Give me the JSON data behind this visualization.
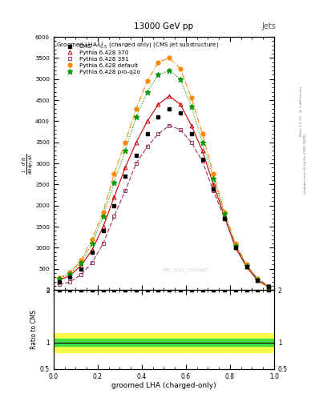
{
  "title_top": "13000 GeV pp",
  "title_right": "Jets",
  "xlabel": "groomed LHA (charged-only)",
  "ylabel_ratio": "Ratio to CMS",
  "watermark": "CMS_2021_I1920187",
  "cms_x": [
    0.025,
    0.075,
    0.125,
    0.175,
    0.225,
    0.275,
    0.325,
    0.375,
    0.425,
    0.475,
    0.525,
    0.575,
    0.625,
    0.675,
    0.725,
    0.775,
    0.825,
    0.875,
    0.925,
    0.975
  ],
  "cms_y": [
    200,
    300,
    500,
    900,
    1400,
    2000,
    2700,
    3200,
    3700,
    4100,
    4300,
    4200,
    3700,
    3100,
    2400,
    1700,
    1000,
    550,
    230,
    80
  ],
  "py370_y": [
    230,
    340,
    580,
    950,
    1500,
    2200,
    2900,
    3500,
    4000,
    4400,
    4600,
    4400,
    3900,
    3300,
    2500,
    1750,
    1000,
    550,
    220,
    70
  ],
  "py391_y": [
    130,
    190,
    360,
    650,
    1100,
    1750,
    2350,
    3000,
    3400,
    3700,
    3900,
    3800,
    3500,
    3050,
    2350,
    1700,
    1050,
    580,
    270,
    95
  ],
  "pydef_y": [
    280,
    420,
    700,
    1200,
    1850,
    2750,
    3500,
    4300,
    4950,
    5400,
    5500,
    5250,
    4550,
    3700,
    2750,
    1850,
    1100,
    600,
    260,
    80
  ],
  "pyproq2o_y": [
    260,
    390,
    650,
    1100,
    1750,
    2550,
    3300,
    4100,
    4700,
    5100,
    5200,
    5000,
    4350,
    3500,
    2650,
    1800,
    1050,
    570,
    245,
    78
  ],
  "ylim_lo": 0,
  "ylim_hi": 6000,
  "ytick_step": 500,
  "ratio_ylim_lo": 0.5,
  "ratio_ylim_hi": 2.0,
  "ratio_yticks": [
    0.5,
    1.0,
    2.0
  ],
  "cms_color": "#000000",
  "py370_color": "#cc0000",
  "py391_color": "#993366",
  "pydef_color": "#ff8800",
  "pyproq2o_color": "#009900",
  "green_band_lo": 0.93,
  "green_band_hi": 1.07,
  "yellow_band_lo": 0.82,
  "yellow_band_hi": 1.18,
  "legend_labels": [
    "CMS",
    "Pythia 6.428 370",
    "Pythia 6.428 391",
    "Pythia 6.428 default",
    "Pythia 6.428 pro-q2o"
  ]
}
